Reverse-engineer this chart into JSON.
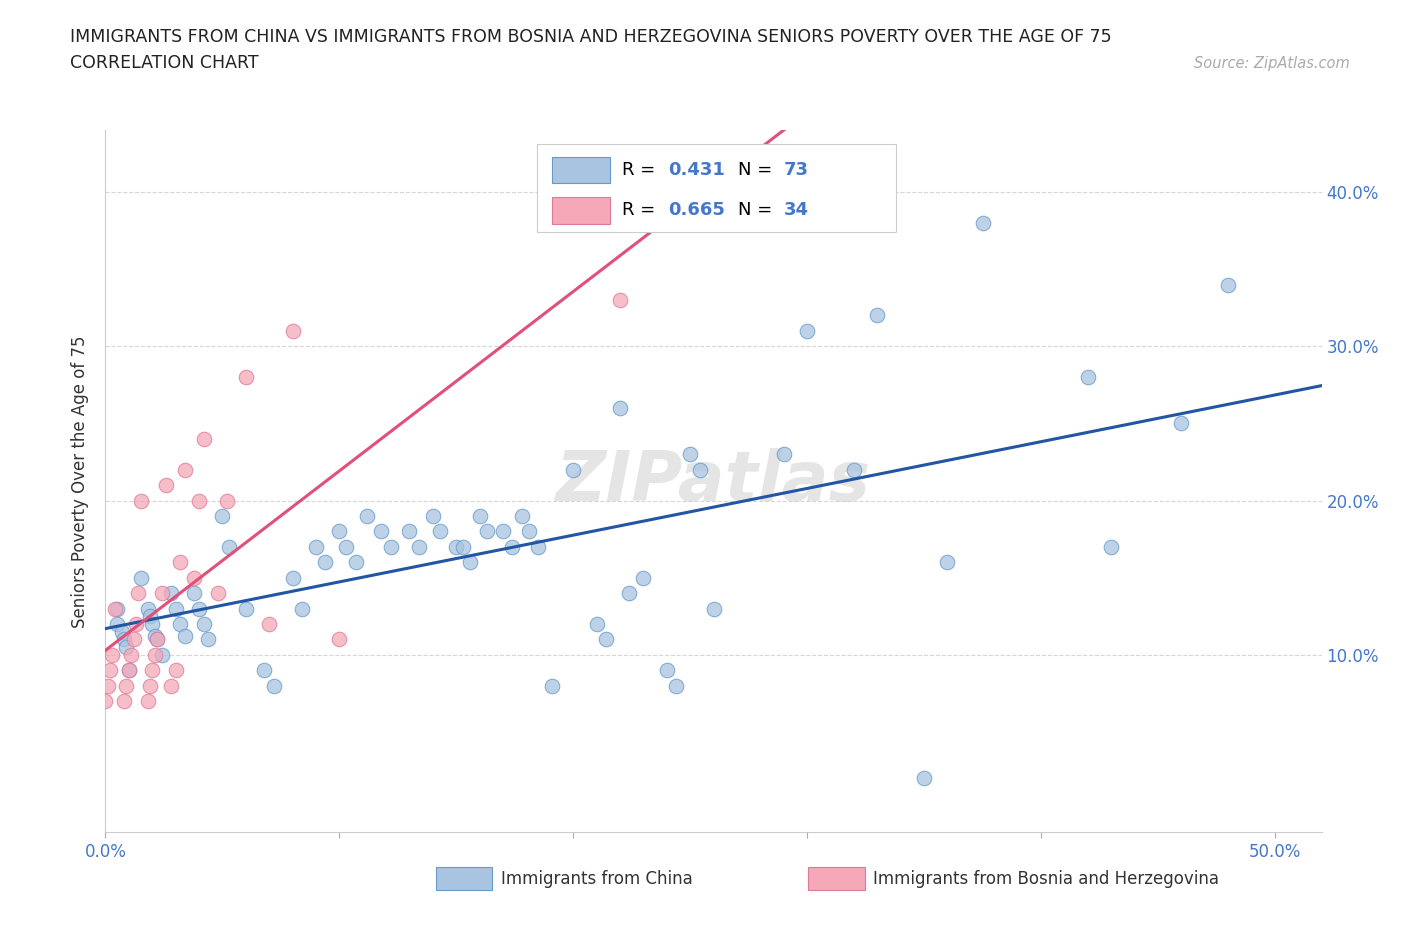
{
  "title_line1": "IMMIGRANTS FROM CHINA VS IMMIGRANTS FROM BOSNIA AND HERZEGOVINA SENIORS POVERTY OVER THE AGE OF 75",
  "title_line2": "CORRELATION CHART",
  "source": "Source: ZipAtlas.com",
  "ylabel": "Seniors Poverty Over the Age of 75",
  "xlim": [
    0.0,
    0.52
  ],
  "ylim": [
    -0.015,
    0.44
  ],
  "china_color": "#a8c4e0",
  "china_edge_color": "#6699cc",
  "bosnia_color": "#f4a8b8",
  "bosnia_edge_color": "#e07898",
  "china_R": 0.431,
  "china_N": 73,
  "bosnia_R": 0.665,
  "bosnia_N": 34,
  "trend_china_color": "#2255a4",
  "trend_bosnia_color": "#e0507a",
  "watermark": "ZIPatlas",
  "legend_label_china": "Immigrants from China",
  "legend_label_bosnia": "Immigrants from Bosnia and Herzegovina",
  "china_x": [
    0.005,
    0.005,
    0.007,
    0.008,
    0.009,
    0.01,
    0.015,
    0.018,
    0.019,
    0.02,
    0.021,
    0.022,
    0.024,
    0.028,
    0.03,
    0.032,
    0.034,
    0.038,
    0.04,
    0.042,
    0.044,
    0.05,
    0.053,
    0.06,
    0.068,
    0.072,
    0.08,
    0.084,
    0.09,
    0.094,
    0.1,
    0.103,
    0.107,
    0.112,
    0.118,
    0.122,
    0.13,
    0.134,
    0.14,
    0.143,
    0.15,
    0.153,
    0.156,
    0.16,
    0.163,
    0.17,
    0.174,
    0.178,
    0.181,
    0.185,
    0.191,
    0.2,
    0.21,
    0.214,
    0.22,
    0.224,
    0.23,
    0.24,
    0.244,
    0.25,
    0.254,
    0.26,
    0.29,
    0.3,
    0.32,
    0.33,
    0.35,
    0.36,
    0.375,
    0.42,
    0.43,
    0.46,
    0.48
  ],
  "china_y": [
    0.13,
    0.12,
    0.115,
    0.11,
    0.105,
    0.09,
    0.15,
    0.13,
    0.125,
    0.12,
    0.112,
    0.11,
    0.1,
    0.14,
    0.13,
    0.12,
    0.112,
    0.14,
    0.13,
    0.12,
    0.11,
    0.19,
    0.17,
    0.13,
    0.09,
    0.08,
    0.15,
    0.13,
    0.17,
    0.16,
    0.18,
    0.17,
    0.16,
    0.19,
    0.18,
    0.17,
    0.18,
    0.17,
    0.19,
    0.18,
    0.17,
    0.17,
    0.16,
    0.19,
    0.18,
    0.18,
    0.17,
    0.19,
    0.18,
    0.17,
    0.08,
    0.22,
    0.12,
    0.11,
    0.26,
    0.14,
    0.15,
    0.09,
    0.08,
    0.23,
    0.22,
    0.13,
    0.23,
    0.31,
    0.22,
    0.32,
    0.02,
    0.16,
    0.38,
    0.28,
    0.17,
    0.25,
    0.34
  ],
  "bosnia_x": [
    0.0,
    0.001,
    0.002,
    0.003,
    0.004,
    0.008,
    0.009,
    0.01,
    0.011,
    0.012,
    0.013,
    0.014,
    0.015,
    0.018,
    0.019,
    0.02,
    0.021,
    0.022,
    0.024,
    0.026,
    0.028,
    0.03,
    0.032,
    0.034,
    0.038,
    0.04,
    0.042,
    0.048,
    0.052,
    0.06,
    0.07,
    0.08,
    0.1,
    0.22
  ],
  "bosnia_y": [
    0.07,
    0.08,
    0.09,
    0.1,
    0.13,
    0.07,
    0.08,
    0.09,
    0.1,
    0.11,
    0.12,
    0.14,
    0.2,
    0.07,
    0.08,
    0.09,
    0.1,
    0.11,
    0.14,
    0.21,
    0.08,
    0.09,
    0.16,
    0.22,
    0.15,
    0.2,
    0.24,
    0.14,
    0.2,
    0.28,
    0.12,
    0.31,
    0.11,
    0.33
  ]
}
